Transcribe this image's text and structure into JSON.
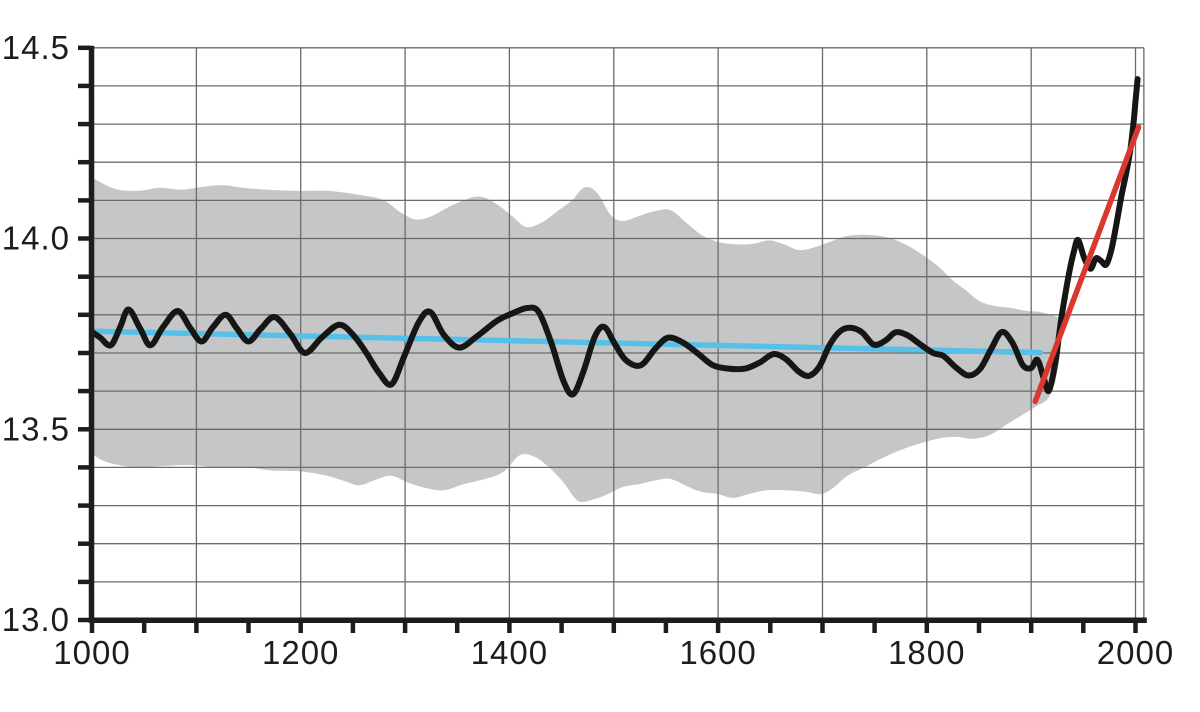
{
  "chart_data": {
    "type": "line",
    "title": "",
    "xlabel": "",
    "ylabel": "",
    "x_range": [
      1000,
      2008
    ],
    "y_range": [
      13.0,
      14.5
    ],
    "grid": {
      "visible": true,
      "x_step_years": 100,
      "y_step": 0.1,
      "color": "#6b6b6b"
    },
    "legend": {
      "visible": false
    },
    "axis_color": "#1d1d1b",
    "x_tick_labels": [
      [
        "1000",
        1000
      ],
      [
        "1200",
        1200
      ],
      [
        "1400",
        1400
      ],
      [
        "1600",
        1600
      ],
      [
        "1800",
        1800
      ],
      [
        "2000",
        2000
      ]
    ],
    "x_minor_tick_step_years": 50,
    "y_tick_labels": [
      [
        "14.5",
        14.5
      ],
      [
        "14.0",
        14.0
      ],
      [
        "13.5",
        13.5
      ],
      [
        "13.0",
        13.0
      ]
    ],
    "y_minor_tick_step": 0.1,
    "band": {
      "name": "uncertainty-range",
      "color": "#c5c6c8",
      "top": [
        [
          1000,
          14.16
        ],
        [
          1012,
          14.142
        ],
        [
          1025,
          14.128
        ],
        [
          1045,
          14.125
        ],
        [
          1065,
          14.133
        ],
        [
          1085,
          14.128
        ],
        [
          1105,
          14.135
        ],
        [
          1125,
          14.14
        ],
        [
          1145,
          14.133
        ],
        [
          1168,
          14.128
        ],
        [
          1195,
          14.125
        ],
        [
          1225,
          14.125
        ],
        [
          1252,
          14.116
        ],
        [
          1278,
          14.102
        ],
        [
          1296,
          14.068
        ],
        [
          1310,
          14.05
        ],
        [
          1324,
          14.057
        ],
        [
          1340,
          14.08
        ],
        [
          1356,
          14.1
        ],
        [
          1372,
          14.11
        ],
        [
          1388,
          14.09
        ],
        [
          1403,
          14.058
        ],
        [
          1416,
          14.03
        ],
        [
          1431,
          14.042
        ],
        [
          1446,
          14.072
        ],
        [
          1460,
          14.1
        ],
        [
          1472,
          14.134
        ],
        [
          1484,
          14.12
        ],
        [
          1497,
          14.062
        ],
        [
          1508,
          14.046
        ],
        [
          1521,
          14.056
        ],
        [
          1537,
          14.07
        ],
        [
          1554,
          14.075
        ],
        [
          1570,
          14.04
        ],
        [
          1585,
          14.008
        ],
        [
          1601,
          13.99
        ],
        [
          1617,
          13.985
        ],
        [
          1633,
          13.986
        ],
        [
          1649,
          13.995
        ],
        [
          1663,
          13.985
        ],
        [
          1677,
          13.97
        ],
        [
          1691,
          13.976
        ],
        [
          1706,
          13.99
        ],
        [
          1721,
          14.005
        ],
        [
          1736,
          14.01
        ],
        [
          1751,
          14.008
        ],
        [
          1764,
          14.002
        ],
        [
          1777,
          13.988
        ],
        [
          1790,
          13.968
        ],
        [
          1801,
          13.948
        ],
        [
          1813,
          13.922
        ],
        [
          1825,
          13.89
        ],
        [
          1838,
          13.863
        ],
        [
          1851,
          13.835
        ],
        [
          1866,
          13.823
        ],
        [
          1881,
          13.818
        ],
        [
          1896,
          13.81
        ],
        [
          1908,
          13.808
        ],
        [
          1918,
          13.8
        ],
        [
          1928,
          13.792
        ]
      ],
      "bottom": [
        [
          1000,
          13.435
        ],
        [
          1012,
          13.416
        ],
        [
          1026,
          13.406
        ],
        [
          1045,
          13.4
        ],
        [
          1070,
          13.404
        ],
        [
          1095,
          13.406
        ],
        [
          1120,
          13.4
        ],
        [
          1148,
          13.4
        ],
        [
          1172,
          13.392
        ],
        [
          1198,
          13.39
        ],
        [
          1222,
          13.38
        ],
        [
          1240,
          13.366
        ],
        [
          1256,
          13.353
        ],
        [
          1272,
          13.368
        ],
        [
          1287,
          13.378
        ],
        [
          1303,
          13.36
        ],
        [
          1320,
          13.346
        ],
        [
          1337,
          13.34
        ],
        [
          1356,
          13.356
        ],
        [
          1377,
          13.37
        ],
        [
          1394,
          13.388
        ],
        [
          1410,
          13.432
        ],
        [
          1424,
          13.428
        ],
        [
          1438,
          13.4
        ],
        [
          1452,
          13.36
        ],
        [
          1466,
          13.312
        ],
        [
          1480,
          13.316
        ],
        [
          1494,
          13.33
        ],
        [
          1508,
          13.348
        ],
        [
          1524,
          13.356
        ],
        [
          1540,
          13.366
        ],
        [
          1554,
          13.37
        ],
        [
          1569,
          13.352
        ],
        [
          1584,
          13.336
        ],
        [
          1600,
          13.33
        ],
        [
          1614,
          13.32
        ],
        [
          1629,
          13.33
        ],
        [
          1646,
          13.34
        ],
        [
          1665,
          13.34
        ],
        [
          1684,
          13.336
        ],
        [
          1699,
          13.33
        ],
        [
          1711,
          13.348
        ],
        [
          1724,
          13.378
        ],
        [
          1740,
          13.4
        ],
        [
          1760,
          13.428
        ],
        [
          1781,
          13.452
        ],
        [
          1800,
          13.468
        ],
        [
          1814,
          13.477
        ],
        [
          1829,
          13.48
        ],
        [
          1844,
          13.475
        ],
        [
          1861,
          13.486
        ],
        [
          1878,
          13.515
        ],
        [
          1893,
          13.54
        ],
        [
          1906,
          13.562
        ],
        [
          1916,
          13.58
        ],
        [
          1923,
          13.625
        ],
        [
          1928,
          13.7
        ]
      ]
    },
    "series": [
      {
        "name": "millennial-linear-trend",
        "color": "#57c0e9",
        "width": 5.5,
        "smooth": false,
        "points": [
          [
            1000,
            13.757
          ],
          [
            1909,
            13.701
          ]
        ]
      },
      {
        "name": "reconstructed-temperature",
        "color": "#161614",
        "width": 6,
        "smooth": true,
        "points": [
          [
            1000,
            13.755
          ],
          [
            1008,
            13.74
          ],
          [
            1018,
            13.72
          ],
          [
            1027,
            13.768
          ],
          [
            1035,
            13.814
          ],
          [
            1046,
            13.765
          ],
          [
            1056,
            13.72
          ],
          [
            1068,
            13.768
          ],
          [
            1082,
            13.81
          ],
          [
            1094,
            13.766
          ],
          [
            1105,
            13.73
          ],
          [
            1116,
            13.768
          ],
          [
            1128,
            13.8
          ],
          [
            1139,
            13.764
          ],
          [
            1150,
            13.73
          ],
          [
            1162,
            13.764
          ],
          [
            1175,
            13.794
          ],
          [
            1190,
            13.75
          ],
          [
            1204,
            13.7
          ],
          [
            1220,
            13.74
          ],
          [
            1237,
            13.774
          ],
          [
            1251,
            13.745
          ],
          [
            1263,
            13.7
          ],
          [
            1275,
            13.648
          ],
          [
            1287,
            13.618
          ],
          [
            1299,
            13.69
          ],
          [
            1313,
            13.78
          ],
          [
            1324,
            13.808
          ],
          [
            1337,
            13.748
          ],
          [
            1352,
            13.714
          ],
          [
            1369,
            13.744
          ],
          [
            1388,
            13.784
          ],
          [
            1403,
            13.804
          ],
          [
            1417,
            13.818
          ],
          [
            1428,
            13.808
          ],
          [
            1440,
            13.728
          ],
          [
            1452,
            13.625
          ],
          [
            1461,
            13.592
          ],
          [
            1471,
            13.652
          ],
          [
            1482,
            13.744
          ],
          [
            1491,
            13.768
          ],
          [
            1501,
            13.724
          ],
          [
            1512,
            13.68
          ],
          [
            1526,
            13.668
          ],
          [
            1540,
            13.712
          ],
          [
            1552,
            13.74
          ],
          [
            1566,
            13.728
          ],
          [
            1580,
            13.7
          ],
          [
            1595,
            13.668
          ],
          [
            1610,
            13.659
          ],
          [
            1626,
            13.659
          ],
          [
            1640,
            13.675
          ],
          [
            1653,
            13.697
          ],
          [
            1665,
            13.684
          ],
          [
            1677,
            13.652
          ],
          [
            1687,
            13.64
          ],
          [
            1697,
            13.664
          ],
          [
            1707,
            13.722
          ],
          [
            1717,
            13.757
          ],
          [
            1727,
            13.766
          ],
          [
            1738,
            13.754
          ],
          [
            1749,
            13.722
          ],
          [
            1760,
            13.732
          ],
          [
            1770,
            13.754
          ],
          [
            1781,
            13.747
          ],
          [
            1793,
            13.724
          ],
          [
            1806,
            13.7
          ],
          [
            1816,
            13.692
          ],
          [
            1828,
            13.662
          ],
          [
            1840,
            13.641
          ],
          [
            1851,
            13.658
          ],
          [
            1862,
            13.712
          ],
          [
            1872,
            13.755
          ],
          [
            1882,
            13.727
          ],
          [
            1892,
            13.668
          ],
          [
            1900,
            13.661
          ],
          [
            1906,
            13.682
          ],
          [
            1912,
            13.634
          ],
          [
            1917,
            13.601
          ],
          [
            1923,
            13.673
          ],
          [
            1929,
            13.792
          ],
          [
            1936,
            13.904
          ],
          [
            1941,
            13.966
          ],
          [
            1945,
            13.996
          ],
          [
            1951,
            13.948
          ],
          [
            1957,
            13.921
          ],
          [
            1962,
            13.948
          ],
          [
            1967,
            13.941
          ],
          [
            1972,
            13.932
          ],
          [
            1977,
            13.972
          ],
          [
            1982,
            14.042
          ],
          [
            1987,
            14.118
          ],
          [
            1991,
            14.17
          ],
          [
            1995,
            14.232
          ],
          [
            1998,
            14.3
          ],
          [
            2000,
            14.36
          ],
          [
            2002,
            14.418
          ]
        ]
      },
      {
        "name": "recent-warming-trend",
        "color": "#d9382f",
        "width": 5.5,
        "smooth": false,
        "points": [
          [
            1904,
            13.573
          ],
          [
            2003,
            14.292
          ]
        ]
      }
    ]
  }
}
